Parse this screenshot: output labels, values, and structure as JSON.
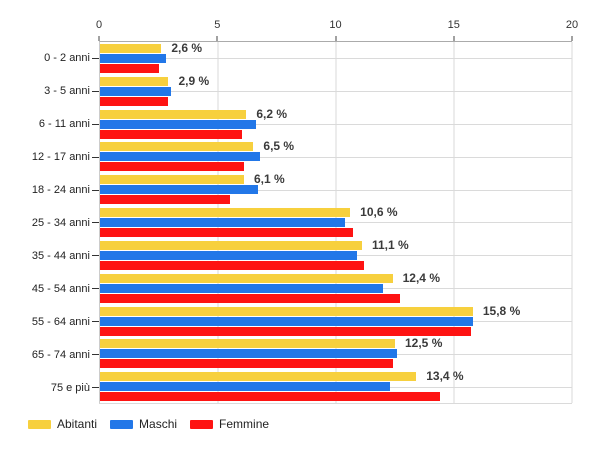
{
  "chart_data": {
    "type": "bar",
    "orientation": "horizontal",
    "title": "",
    "xlabel": "",
    "ylabel": "",
    "xlim": [
      0,
      20
    ],
    "x_ticks": [
      0,
      5,
      10,
      15,
      20
    ],
    "grid": true,
    "legend_position": "bottom",
    "categories": [
      "0 - 2 anni",
      "3 - 5 anni",
      "6 - 11 anni",
      "12 - 17 anni",
      "18 - 24 anni",
      "25 - 34 anni",
      "35 - 44 anni",
      "45 - 54 anni",
      "55 - 64 anni",
      "65 - 74 anni",
      "75 e più"
    ],
    "series": [
      {
        "name": "Abitanti",
        "color": "#F7D03E",
        "values": [
          2.6,
          2.9,
          6.2,
          6.5,
          6.1,
          10.6,
          11.1,
          12.4,
          15.8,
          12.5,
          13.4
        ]
      },
      {
        "name": "Maschi",
        "color": "#2277E8",
        "values": [
          2.8,
          3.0,
          6.6,
          6.8,
          6.7,
          10.4,
          10.9,
          12.0,
          15.8,
          12.6,
          12.3
        ]
      },
      {
        "name": "Femmine",
        "color": "#FE1312",
        "values": [
          2.5,
          2.9,
          6.0,
          6.1,
          5.5,
          10.7,
          11.2,
          12.7,
          15.7,
          12.4,
          14.4
        ]
      }
    ],
    "bar_labels": [
      "2,6 %",
      "2,9 %",
      "6,2 %",
      "6,5 %",
      "6,1 %",
      "10,6 %",
      "11,1 %",
      "12,4 %",
      "15,8 %",
      "12,5 %",
      "13,4 %"
    ]
  },
  "colors": {
    "background": "#ffffff",
    "axis_line": "#ababab",
    "gridline": "#dadada",
    "tick_mark": "#444444",
    "axis_text": "#333333",
    "category_text": "#222222",
    "value_label_text": "#3b3b3b"
  }
}
